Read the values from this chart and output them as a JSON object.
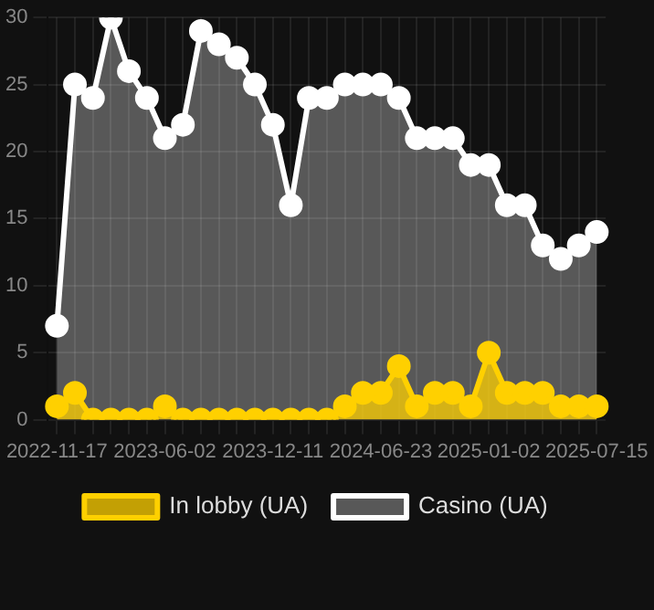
{
  "chart_data": {
    "type": "area",
    "categories": [
      "2022-11-17",
      null,
      null,
      null,
      null,
      null,
      "2023-06-02",
      null,
      null,
      null,
      null,
      null,
      "2023-12-11",
      null,
      null,
      null,
      null,
      null,
      "2024-06-23",
      null,
      null,
      null,
      null,
      null,
      "2025-01-02",
      null,
      null,
      null,
      null,
      null,
      "2025-07-15"
    ],
    "series": [
      {
        "name": "In lobby (UA)",
        "color": "#ffd000",
        "values": [
          1,
          2,
          0,
          0,
          0,
          0,
          1,
          0,
          0,
          0,
          0,
          0,
          0,
          0,
          0,
          0,
          1,
          2,
          2,
          4,
          1,
          2,
          2,
          1,
          5,
          2,
          2,
          2,
          1,
          1,
          1
        ]
      },
      {
        "name": "Casino (UA)",
        "color": "#ffffff",
        "values": [
          7,
          25,
          24,
          30,
          26,
          24,
          21,
          22,
          29,
          28,
          27,
          25,
          22,
          16,
          24,
          24,
          25,
          25,
          25,
          24,
          21,
          21,
          21,
          19,
          19,
          16,
          16,
          13,
          12,
          13,
          14
        ]
      }
    ],
    "ylim": [
      0,
      30
    ],
    "yticks": [
      0,
      5,
      10,
      15,
      20,
      25,
      30
    ],
    "grid": true,
    "legend": "bottom",
    "marker": "circle",
    "line_style": "solid"
  }
}
